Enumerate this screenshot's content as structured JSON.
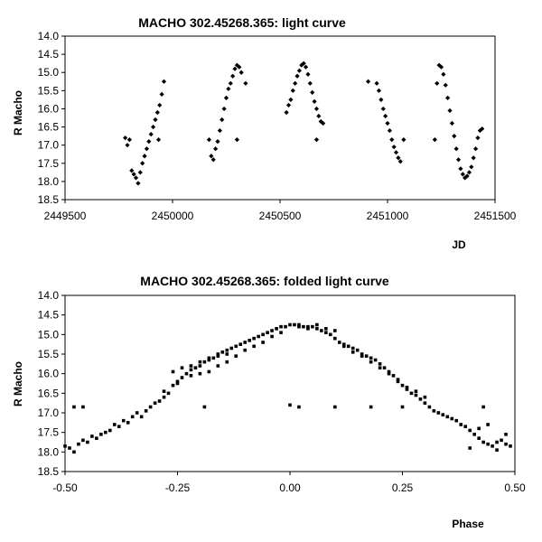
{
  "chart_data": [
    {
      "type": "scatter",
      "title": "MACHO 302.45268.365: light curve",
      "xlabel": "JD",
      "ylabel": "R Macho",
      "xlim": [
        2449500,
        2451500
      ],
      "ylim": [
        14.0,
        18.5
      ],
      "y_inverted": true,
      "grid": false,
      "legend": "none",
      "xticks": [
        2449500,
        2450000,
        2450500,
        2451000,
        2451500
      ],
      "yticks": [
        14.0,
        14.5,
        15.0,
        15.5,
        16.0,
        16.5,
        17.0,
        17.5,
        18.0,
        18.5
      ],
      "marker": "diamond",
      "series": [
        {
          "points": [
            [
              2449780,
              16.8
            ],
            [
              2449790,
              17.0
            ],
            [
              2449800,
              16.85
            ],
            [
              2449810,
              17.7
            ],
            [
              2449820,
              17.8
            ],
            [
              2449830,
              17.9
            ],
            [
              2449840,
              18.05
            ],
            [
              2449850,
              17.75
            ],
            [
              2449860,
              17.5
            ],
            [
              2449870,
              17.3
            ],
            [
              2449880,
              17.1
            ],
            [
              2449890,
              16.9
            ],
            [
              2449900,
              16.7
            ],
            [
              2449910,
              16.5
            ],
            [
              2449920,
              16.3
            ],
            [
              2449930,
              16.1
            ],
            [
              2449940,
              15.9
            ],
            [
              2449950,
              15.6
            ],
            [
              2449960,
              15.25
            ],
            [
              2449935,
              16.85
            ],
            [
              2450170,
              16.85
            ],
            [
              2450180,
              17.3
            ],
            [
              2450190,
              17.4
            ],
            [
              2450200,
              17.1
            ],
            [
              2450210,
              16.9
            ],
            [
              2450220,
              16.6
            ],
            [
              2450230,
              16.3
            ],
            [
              2450240,
              16.0
            ],
            [
              2450250,
              15.7
            ],
            [
              2450260,
              15.45
            ],
            [
              2450270,
              15.3
            ],
            [
              2450280,
              15.1
            ],
            [
              2450290,
              14.9
            ],
            [
              2450300,
              14.8
            ],
            [
              2450310,
              14.85
            ],
            [
              2450320,
              15.0
            ],
            [
              2450340,
              15.3
            ],
            [
              2450300,
              16.85
            ],
            [
              2450530,
              16.1
            ],
            [
              2450540,
              15.9
            ],
            [
              2450550,
              15.75
            ],
            [
              2450560,
              15.5
            ],
            [
              2450570,
              15.3
            ],
            [
              2450580,
              15.1
            ],
            [
              2450590,
              14.95
            ],
            [
              2450600,
              14.8
            ],
            [
              2450610,
              14.75
            ],
            [
              2450620,
              14.85
            ],
            [
              2450630,
              15.05
            ],
            [
              2450640,
              15.3
            ],
            [
              2450650,
              15.55
            ],
            [
              2450660,
              15.8
            ],
            [
              2450670,
              16.0
            ],
            [
              2450680,
              16.2
            ],
            [
              2450690,
              16.35
            ],
            [
              2450700,
              16.4
            ],
            [
              2450670,
              16.85
            ],
            [
              2450910,
              15.25
            ],
            [
              2450950,
              15.3
            ],
            [
              2450960,
              15.5
            ],
            [
              2450970,
              15.75
            ],
            [
              2450980,
              16.0
            ],
            [
              2450990,
              16.2
            ],
            [
              2451000,
              16.4
            ],
            [
              2451010,
              16.6
            ],
            [
              2451020,
              16.85
            ],
            [
              2451030,
              17.05
            ],
            [
              2451040,
              17.2
            ],
            [
              2451050,
              17.35
            ],
            [
              2451060,
              17.45
            ],
            [
              2451075,
              16.85
            ],
            [
              2451220,
              16.85
            ],
            [
              2451230,
              15.3
            ],
            [
              2451240,
              14.8
            ],
            [
              2451250,
              14.85
            ],
            [
              2451260,
              15.05
            ],
            [
              2451270,
              15.35
            ],
            [
              2451280,
              15.7
            ],
            [
              2451290,
              16.05
            ],
            [
              2451300,
              16.4
            ],
            [
              2451310,
              16.75
            ],
            [
              2451320,
              17.1
            ],
            [
              2451330,
              17.4
            ],
            [
              2451340,
              17.65
            ],
            [
              2451350,
              17.8
            ],
            [
              2451360,
              17.9
            ],
            [
              2451370,
              17.85
            ],
            [
              2451380,
              17.75
            ],
            [
              2451390,
              17.6
            ],
            [
              2451400,
              17.35
            ],
            [
              2451410,
              17.1
            ],
            [
              2451420,
              16.8
            ],
            [
              2451430,
              16.6
            ],
            [
              2451440,
              16.55
            ]
          ]
        }
      ]
    },
    {
      "type": "scatter",
      "title": "MACHO 302.45268.365: folded light curve",
      "xlabel": "Phase",
      "ylabel": "R Macho",
      "xlim": [
        -0.5,
        0.5
      ],
      "ylim": [
        14.0,
        18.5
      ],
      "y_inverted": true,
      "grid": false,
      "legend": "none",
      "xticks": [
        -0.5,
        -0.25,
        0.0,
        0.25,
        0.5
      ],
      "xtick_labels": [
        "-0.50",
        "-0.25",
        "0.00",
        "0.25",
        "0.50"
      ],
      "yticks": [
        14.0,
        14.5,
        15.0,
        15.5,
        16.0,
        16.5,
        17.0,
        17.5,
        18.0,
        18.5
      ],
      "marker": "square",
      "series": [
        {
          "points": [
            [
              -0.5,
              17.85
            ],
            [
              -0.49,
              17.9
            ],
            [
              -0.48,
              18.0
            ],
            [
              -0.47,
              17.8
            ],
            [
              -0.46,
              17.7
            ],
            [
              -0.45,
              17.75
            ],
            [
              -0.44,
              17.6
            ],
            [
              -0.43,
              17.65
            ],
            [
              -0.42,
              17.55
            ],
            [
              -0.41,
              17.5
            ],
            [
              -0.4,
              17.45
            ],
            [
              -0.39,
              17.3
            ],
            [
              -0.38,
              17.35
            ],
            [
              -0.37,
              17.2
            ],
            [
              -0.36,
              17.25
            ],
            [
              -0.35,
              17.1
            ],
            [
              -0.34,
              17.0
            ],
            [
              -0.33,
              17.1
            ],
            [
              -0.32,
              16.95
            ],
            [
              -0.31,
              16.85
            ],
            [
              -0.3,
              16.75
            ],
            [
              -0.29,
              16.7
            ],
            [
              -0.28,
              16.6
            ],
            [
              -0.27,
              16.5
            ],
            [
              -0.26,
              16.3
            ],
            [
              -0.25,
              16.2
            ],
            [
              -0.24,
              16.1
            ],
            [
              -0.23,
              16.0
            ],
            [
              -0.22,
              15.9
            ],
            [
              -0.21,
              15.85
            ],
            [
              -0.2,
              15.8
            ],
            [
              -0.19,
              15.7
            ],
            [
              -0.18,
              15.65
            ],
            [
              -0.17,
              15.6
            ],
            [
              -0.16,
              15.5
            ],
            [
              -0.15,
              15.45
            ],
            [
              -0.14,
              15.4
            ],
            [
              -0.13,
              15.35
            ],
            [
              -0.12,
              15.3
            ],
            [
              -0.11,
              15.25
            ],
            [
              -0.1,
              15.2
            ],
            [
              -0.09,
              15.15
            ],
            [
              -0.08,
              15.1
            ],
            [
              -0.07,
              15.05
            ],
            [
              -0.06,
              15.0
            ],
            [
              -0.05,
              14.95
            ],
            [
              -0.04,
              14.9
            ],
            [
              -0.03,
              14.85
            ],
            [
              -0.02,
              14.8
            ],
            [
              -0.01,
              14.8
            ],
            [
              -0.28,
              16.45
            ],
            [
              -0.25,
              16.25
            ],
            [
              -0.22,
              16.05
            ],
            [
              -0.2,
              16.0
            ],
            [
              -0.18,
              15.95
            ],
            [
              -0.16,
              15.8
            ],
            [
              -0.14,
              15.7
            ],
            [
              -0.12,
              15.55
            ],
            [
              -0.1,
              15.4
            ],
            [
              -0.08,
              15.3
            ],
            [
              -0.06,
              15.2
            ],
            [
              -0.04,
              15.05
            ],
            [
              -0.02,
              14.95
            ],
            [
              -0.26,
              15.95
            ],
            [
              -0.24,
              15.85
            ],
            [
              -0.22,
              15.8
            ],
            [
              -0.2,
              15.7
            ],
            [
              -0.18,
              15.6
            ],
            [
              -0.16,
              15.55
            ],
            [
              -0.14,
              15.5
            ],
            [
              0.0,
              14.75
            ],
            [
              0.01,
              14.75
            ],
            [
              0.02,
              14.8
            ],
            [
              0.03,
              14.8
            ],
            [
              0.04,
              14.85
            ],
            [
              0.05,
              14.8
            ],
            [
              0.06,
              14.85
            ],
            [
              0.07,
              14.9
            ],
            [
              0.08,
              14.95
            ],
            [
              0.09,
              15.0
            ],
            [
              0.1,
              15.1
            ],
            [
              0.11,
              15.2
            ],
            [
              0.12,
              15.25
            ],
            [
              0.13,
              15.3
            ],
            [
              0.14,
              15.35
            ],
            [
              0.15,
              15.4
            ],
            [
              0.16,
              15.5
            ],
            [
              0.17,
              15.55
            ],
            [
              0.18,
              15.6
            ],
            [
              0.19,
              15.65
            ],
            [
              0.2,
              15.75
            ],
            [
              0.21,
              15.85
            ],
            [
              0.22,
              15.95
            ],
            [
              0.23,
              16.05
            ],
            [
              0.24,
              16.2
            ],
            [
              0.25,
              16.3
            ],
            [
              0.26,
              16.4
            ],
            [
              0.27,
              16.5
            ],
            [
              0.28,
              16.55
            ],
            [
              0.29,
              16.65
            ],
            [
              0.3,
              16.75
            ],
            [
              0.31,
              16.85
            ],
            [
              0.32,
              16.95
            ],
            [
              0.33,
              17.0
            ],
            [
              0.34,
              17.05
            ],
            [
              0.35,
              17.1
            ],
            [
              0.36,
              17.15
            ],
            [
              0.37,
              17.2
            ],
            [
              0.38,
              17.3
            ],
            [
              0.39,
              17.35
            ],
            [
              0.4,
              17.45
            ],
            [
              0.41,
              17.55
            ],
            [
              0.42,
              17.65
            ],
            [
              0.43,
              17.75
            ],
            [
              0.44,
              17.8
            ],
            [
              0.45,
              17.85
            ],
            [
              0.46,
              17.75
            ],
            [
              0.47,
              17.7
            ],
            [
              0.48,
              17.8
            ],
            [
              0.49,
              17.85
            ],
            [
              0.12,
              15.3
            ],
            [
              0.14,
              15.45
            ],
            [
              0.16,
              15.55
            ],
            [
              0.18,
              15.7
            ],
            [
              0.2,
              15.85
            ],
            [
              0.22,
              16.0
            ],
            [
              0.24,
              16.15
            ],
            [
              0.26,
              16.35
            ],
            [
              0.28,
              16.45
            ],
            [
              0.3,
              16.6
            ],
            [
              0.02,
              14.75
            ],
            [
              0.04,
              14.8
            ],
            [
              0.06,
              14.75
            ],
            [
              0.08,
              14.85
            ],
            [
              0.1,
              14.9
            ],
            [
              0.4,
              17.9
            ],
            [
              0.42,
              17.4
            ],
            [
              0.44,
              17.3
            ],
            [
              0.46,
              17.95
            ],
            [
              0.48,
              17.55
            ],
            [
              -0.48,
              16.85
            ],
            [
              -0.46,
              16.85
            ],
            [
              -0.19,
              16.85
            ],
            [
              0.0,
              16.8
            ],
            [
              0.02,
              16.85
            ],
            [
              0.1,
              16.85
            ],
            [
              0.18,
              16.85
            ],
            [
              0.25,
              16.85
            ],
            [
              0.43,
              16.85
            ]
          ]
        }
      ]
    }
  ]
}
